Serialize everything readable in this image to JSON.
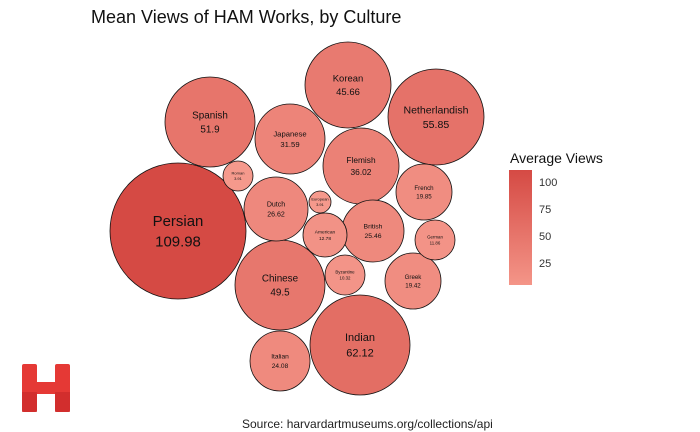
{
  "chart_data": {
    "type": "bubble",
    "title": "Mean Views of HAM Works, by Culture",
    "legend": {
      "title": "Average Views",
      "ticks": [
        100,
        75,
        50,
        25
      ],
      "position": "right"
    },
    "color_low": "#f5998c",
    "color_high": "#d54a44",
    "value_min": 3.91,
    "value_max": 109.98,
    "bubbles": [
      {
        "label": "Persian",
        "value": 109.98
      },
      {
        "label": "Indian",
        "value": 62.12
      },
      {
        "label": "Netherlandish",
        "value": 55.85
      },
      {
        "label": "Spanish",
        "value": 51.9
      },
      {
        "label": "Chinese",
        "value": 49.5
      },
      {
        "label": "Korean",
        "value": 45.66
      },
      {
        "label": "Flemish",
        "value": 36.02
      },
      {
        "label": "Japanese",
        "value": 31.59
      },
      {
        "label": "Dutch",
        "value": 26.62
      },
      {
        "label": "British",
        "value": 25.46
      },
      {
        "label": "Italian",
        "value": 24.08
      },
      {
        "label": "French",
        "value": 19.85
      },
      {
        "label": "Greek",
        "value": 19.42
      },
      {
        "label": "American",
        "value": 12.78
      },
      {
        "label": "German",
        "value": 11.86
      },
      {
        "label": "Byzantine",
        "value": 10.32
      },
      {
        "label": "Roman",
        "value": 3.91
      },
      {
        "label": "European",
        "value": 3.91
      }
    ]
  },
  "caption": "Source: harvardartmuseums.org/collections/api",
  "logo": {
    "name": "harvard-art-museums-logo",
    "color": "#e53935"
  }
}
